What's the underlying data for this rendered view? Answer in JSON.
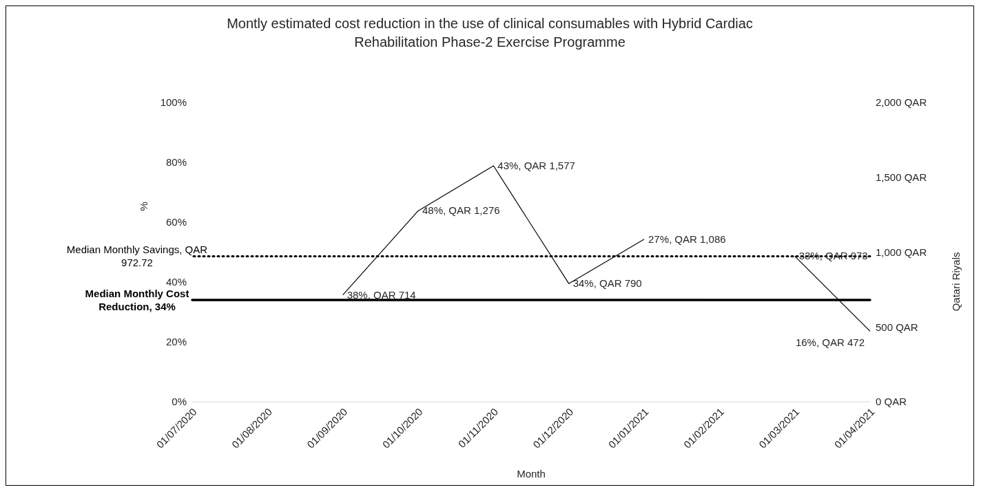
{
  "chart_data": {
    "type": "line",
    "title": "Montly estimated cost reduction in the use of clinical consumables with Hybrid Cardiac Rehabilitation Phase-2  Exercise Programme",
    "xlabel": "Month",
    "ylabel": "%",
    "y2label": "Qatari Riyals",
    "categories": [
      "01/07/2020",
      "01/08/2020",
      "01/09/2020",
      "01/10/2020",
      "01/11/2020",
      "01/12/2020",
      "01/01/2021",
      "01/02/2021",
      "01/03/2021",
      "01/04/2021"
    ],
    "series": [
      {
        "color": "#000000",
        "axis": "y2",
        "values": [
          null,
          null,
          714,
          1276,
          1577,
          790,
          1086,
          null,
          973,
          472
        ],
        "value_labels": [
          null,
          null,
          "38%, QAR 714",
          "48%, QAR 1,276",
          "43%, QAR 1,577",
          "34%, QAR 790",
          "27%, QAR 1,086",
          null,
          "33%, QAR 973",
          "16%, QAR 472"
        ]
      }
    ],
    "ylim": [
      0,
      100
    ],
    "yticks": [
      {
        "value": 0,
        "label": "0%"
      },
      {
        "value": 20,
        "label": "20%"
      },
      {
        "value": 40,
        "label": "40%"
      },
      {
        "value": 60,
        "label": "60%"
      },
      {
        "value": 80,
        "label": "80%"
      },
      {
        "value": 100,
        "label": "100%"
      }
    ],
    "y2lim": [
      0,
      2000
    ],
    "y2ticks": [
      {
        "value": 0,
        "label": "0 QAR"
      },
      {
        "value": 500,
        "label": "500 QAR"
      },
      {
        "value": 1000,
        "label": "1,000 QAR"
      },
      {
        "value": 1500,
        "label": "1,500 QAR"
      },
      {
        "value": 2000,
        "label": "2,000 QAR"
      }
    ],
    "ref_lines": [
      {
        "axis": "y2",
        "value": 972.72,
        "label": "Median Monthly Savings, QAR 972.72",
        "line_style": "dotted",
        "color": "#000000"
      },
      {
        "axis": "y",
        "value": 34,
        "label": "Median Monthly Cost Reduction, 34%",
        "line_style": "solid",
        "color": "#000000"
      }
    ],
    "grid": false,
    "legend": false,
    "marker": "none",
    "line_style": "solid"
  }
}
